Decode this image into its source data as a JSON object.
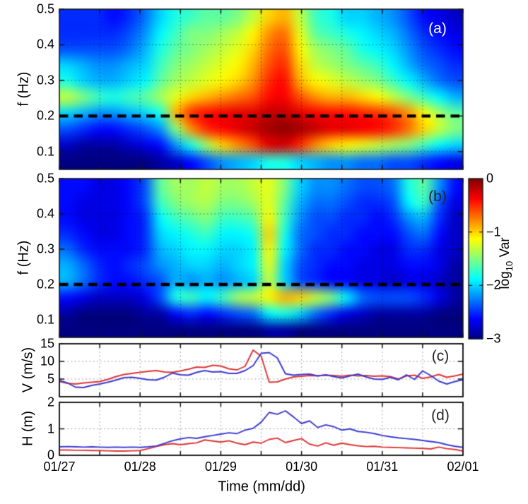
{
  "figure_labels": {
    "xlabel": "Time (mm/dd)",
    "ylabel_spectrogram": "f (Hz)",
    "ylabel_velocity": "V (m/s)",
    "ylabel_height": "H (m)",
    "x_tick_labels": [
      "01/27",
      "01/28",
      "01/29",
      "01/30",
      "01/31",
      "02/01"
    ],
    "colorbar": {
      "label_base": "log",
      "label_sub": "10",
      "label_unit": " Var",
      "tick_labels": [
        "0",
        "−1",
        "−2",
        "−3"
      ],
      "tick_values": [
        0,
        -1,
        -2,
        -3
      ]
    }
  },
  "chart_data": [
    {
      "panel": "a",
      "type": "heatmap",
      "label": "(a)",
      "label_color": "#ffffff",
      "ylabel": "f (Hz)",
      "y_range_hz": [
        0.05,
        0.5
      ],
      "y_ticks_hz": [
        0.1,
        0.2,
        0.3,
        0.4,
        0.5
      ],
      "x_range": [
        "01/27",
        "02/01"
      ],
      "x_span_days": 5,
      "x_grid_step_days": 0.5,
      "dashed_line_freq_hz": 0.2,
      "colormap": "jet",
      "value_label": "log10 Var",
      "value_range": [
        -3,
        0
      ],
      "time_days": [
        0,
        0.2,
        0.4,
        0.6,
        0.8,
        1.0,
        1.2,
        1.4,
        1.6,
        1.8,
        2.0,
        2.2,
        2.4,
        2.6,
        2.8,
        3.0,
        3.2,
        3.4,
        3.6,
        3.8,
        4.0,
        4.2,
        4.4,
        4.6,
        4.8,
        5.0
      ],
      "freq_row_centers_hz": [
        0.48,
        0.43,
        0.38,
        0.33,
        0.28,
        0.23,
        0.18,
        0.13,
        0.08,
        0.05
      ],
      "values_log10_var": [
        [
          -2.5,
          -2.5,
          -2.5,
          -2.6,
          -2.5,
          -2.3,
          -2.0,
          -1.8,
          -1.7,
          -1.6,
          -1.6,
          -1.5,
          -1.3,
          -1.0,
          -0.9,
          -1.3,
          -1.7,
          -1.8,
          -2.0,
          -2.0,
          -2.1,
          -2.2,
          -2.4,
          -2.6,
          -2.7,
          -2.8
        ],
        [
          -2.5,
          -2.5,
          -2.5,
          -2.5,
          -2.4,
          -2.2,
          -1.9,
          -1.7,
          -1.5,
          -1.5,
          -1.4,
          -1.3,
          -1.1,
          -0.8,
          -0.7,
          -1.2,
          -1.6,
          -1.7,
          -1.8,
          -1.9,
          -2.0,
          -2.1,
          -2.3,
          -2.5,
          -2.6,
          -2.7
        ],
        [
          -2.4,
          -2.4,
          -2.4,
          -2.4,
          -2.3,
          -2.1,
          -1.8,
          -1.6,
          -1.5,
          -1.4,
          -1.3,
          -1.2,
          -1.0,
          -0.7,
          -0.6,
          -1.1,
          -1.4,
          -1.5,
          -1.6,
          -1.8,
          -1.9,
          -2.0,
          -2.2,
          -2.4,
          -2.5,
          -2.6
        ],
        [
          -2.0,
          -2.1,
          -2.2,
          -2.2,
          -2.1,
          -2.0,
          -1.7,
          -1.5,
          -1.4,
          -1.3,
          -1.2,
          -1.1,
          -0.9,
          -0.6,
          -0.5,
          -1.0,
          -1.3,
          -1.4,
          -1.5,
          -1.6,
          -1.7,
          -1.9,
          -2.1,
          -2.3,
          -2.4,
          -2.5
        ],
        [
          -1.8,
          -2.0,
          -2.1,
          -2.1,
          -2.0,
          -1.9,
          -1.6,
          -1.4,
          -1.3,
          -1.2,
          -1.1,
          -1.0,
          -0.8,
          -0.5,
          -0.4,
          -0.9,
          -1.1,
          -1.2,
          -1.3,
          -1.4,
          -1.5,
          -1.7,
          -1.9,
          -2.1,
          -2.3,
          -2.4
        ],
        [
          -1.3,
          -1.5,
          -1.7,
          -1.8,
          -1.7,
          -1.6,
          -1.4,
          -1.2,
          -1.0,
          -0.9,
          -0.8,
          -0.7,
          -0.6,
          -0.4,
          -0.35,
          -0.6,
          -0.8,
          -0.9,
          -0.9,
          -1.0,
          -1.1,
          -1.3,
          -1.5,
          -1.7,
          -1.9,
          -2.1
        ],
        [
          -2.0,
          -2.1,
          -2.2,
          -2.2,
          -2.1,
          -2.0,
          -1.8,
          -0.9,
          -0.5,
          -0.4,
          -0.35,
          -0.3,
          -0.3,
          -0.2,
          -0.2,
          -0.3,
          -0.35,
          -0.4,
          -0.4,
          -0.45,
          -0.5,
          -0.6,
          -0.8,
          -1.1,
          -1.4,
          -1.6
        ],
        [
          -2.4,
          -2.5,
          -2.6,
          -2.6,
          -2.5,
          -2.4,
          -2.2,
          -1.5,
          -0.8,
          -0.5,
          -0.4,
          -0.3,
          -0.2,
          -0.1,
          -0.05,
          -0.1,
          -0.2,
          -0.3,
          -0.3,
          -0.35,
          -0.4,
          -0.5,
          -0.7,
          -1.0,
          -1.3,
          -1.5
        ],
        [
          -2.8,
          -2.9,
          -2.9,
          -2.9,
          -2.8,
          -2.7,
          -2.6,
          -2.2,
          -1.8,
          -1.4,
          -1.0,
          -0.8,
          -0.6,
          -0.3,
          -0.25,
          -0.5,
          -0.8,
          -1.0,
          -1.1,
          -1.2,
          -1.3,
          -1.4,
          -1.5,
          -1.7,
          -1.9,
          -2.0
        ],
        [
          -3,
          -3,
          -3,
          -3,
          -3,
          -3,
          -2.9,
          -2.8,
          -2.6,
          -2.4,
          -2.2,
          -2.1,
          -2.0,
          -1.8,
          -1.8,
          -2.0,
          -2.1,
          -2.2,
          -2.2,
          -2.3,
          -2.3,
          -2.4,
          -2.4,
          -2.5,
          -2.6,
          -2.7
        ]
      ]
    },
    {
      "panel": "b",
      "type": "heatmap",
      "label": "(b)",
      "label_color": "#262626",
      "ylabel": "f (Hz)",
      "y_range_hz": [
        0.05,
        0.5
      ],
      "y_ticks_hz": [
        0.1,
        0.2,
        0.3,
        0.4,
        0.5
      ],
      "x_range": [
        "01/27",
        "02/01"
      ],
      "x_span_days": 5,
      "x_grid_step_days": 0.5,
      "dashed_line_freq_hz": 0.2,
      "colormap": "jet",
      "value_label": "log10 Var",
      "value_range": [
        -3,
        0
      ],
      "time_days": [
        0,
        0.2,
        0.4,
        0.6,
        0.8,
        1.0,
        1.2,
        1.4,
        1.6,
        1.8,
        2.0,
        2.2,
        2.4,
        2.6,
        2.8,
        3.0,
        3.2,
        3.4,
        3.6,
        3.8,
        4.0,
        4.2,
        4.4,
        4.6,
        4.8,
        5.0
      ],
      "freq_row_centers_hz": [
        0.48,
        0.43,
        0.38,
        0.33,
        0.28,
        0.23,
        0.18,
        0.13,
        0.08,
        0.05
      ],
      "values_log10_var": [
        [
          -2.6,
          -2.6,
          -2.7,
          -2.7,
          -2.6,
          -2.4,
          -1.6,
          -1.4,
          -1.4,
          -1.3,
          -1.4,
          -1.4,
          -1.3,
          -1.2,
          -1.5,
          -2.0,
          -2.2,
          -2.2,
          -2.3,
          -2.4,
          -2.4,
          -2.3,
          -1.8,
          -1.6,
          -2.2,
          -2.6
        ],
        [
          -2.6,
          -2.7,
          -2.7,
          -2.7,
          -2.6,
          -2.4,
          -1.7,
          -1.5,
          -1.4,
          -1.35,
          -1.5,
          -1.5,
          -1.4,
          -1.2,
          -1.6,
          -2.1,
          -2.3,
          -2.3,
          -2.4,
          -2.5,
          -2.5,
          -2.4,
          -1.9,
          -1.7,
          -2.4,
          -2.7
        ],
        [
          -2.6,
          -2.7,
          -2.7,
          -2.7,
          -2.6,
          -2.5,
          -1.9,
          -1.7,
          -1.6,
          -1.5,
          -1.7,
          -1.7,
          -1.6,
          -1.1,
          -1.7,
          -2.2,
          -2.4,
          -2.4,
          -2.5,
          -2.5,
          -2.6,
          -2.5,
          -2.2,
          -2.1,
          -2.5,
          -2.8
        ],
        [
          -2.5,
          -2.6,
          -2.7,
          -2.7,
          -2.6,
          -2.5,
          -2.0,
          -1.9,
          -1.8,
          -1.7,
          -1.9,
          -1.9,
          -1.8,
          -1.0,
          -1.8,
          -2.3,
          -2.4,
          -2.5,
          -2.5,
          -2.6,
          -2.6,
          -2.6,
          -2.4,
          -2.3,
          -2.6,
          -2.8
        ],
        [
          -2.3,
          -2.5,
          -2.6,
          -2.6,
          -2.6,
          -2.5,
          -2.1,
          -2.0,
          -1.9,
          -1.9,
          -2.0,
          -2.0,
          -1.9,
          -1.1,
          -1.9,
          -2.3,
          -2.5,
          -2.5,
          -2.6,
          -2.6,
          -2.7,
          -2.7,
          -2.5,
          -2.5,
          -2.7,
          -2.8
        ],
        [
          -2.1,
          -2.3,
          -2.5,
          -2.6,
          -2.5,
          -2.4,
          -2.2,
          -2.1,
          -2.0,
          -2.0,
          -2.1,
          -2.0,
          -1.9,
          -1.2,
          -2.0,
          -2.4,
          -2.5,
          -2.6,
          -2.6,
          -2.7,
          -2.7,
          -2.7,
          -2.6,
          -2.6,
          -2.7,
          -2.9
        ],
        [
          -2.1,
          -2.3,
          -2.5,
          -2.6,
          -2.6,
          -2.5,
          -2.4,
          -2.1,
          -2.2,
          -2.1,
          -2.2,
          -2.1,
          -2.0,
          -1.3,
          -2.0,
          -2.4,
          -2.5,
          -2.6,
          -2.6,
          -2.7,
          -2.7,
          -2.8,
          -2.7,
          -2.7,
          -2.8,
          -2.9
        ],
        [
          -2.6,
          -2.7,
          -2.8,
          -2.8,
          -2.8,
          -2.7,
          -2.4,
          -1.8,
          -1.7,
          -1.9,
          -1.7,
          -1.4,
          -1.3,
          -1.1,
          -0.9,
          -1.0,
          -1.3,
          -1.5,
          -1.9,
          -2.3,
          -2.4,
          -2.4,
          -2.4,
          -2.5,
          -2.7,
          -2.9
        ],
        [
          -2.9,
          -3.0,
          -3.0,
          -3.0,
          -3.0,
          -2.9,
          -2.9,
          -2.6,
          -2.5,
          -2.6,
          -2.5,
          -2.4,
          -2.3,
          -1.9,
          -1.8,
          -2.0,
          -2.3,
          -2.5,
          -2.7,
          -2.8,
          -2.9,
          -2.9,
          -2.9,
          -2.9,
          -3.0,
          -3.0
        ],
        [
          -3,
          -3,
          -3,
          -3,
          -3,
          -3,
          -3,
          -3,
          -3,
          -3,
          -3,
          -3,
          -3,
          -2.9,
          -2.9,
          -3,
          -3,
          -3,
          -3,
          -3,
          -3,
          -3,
          -3,
          -3,
          -3,
          -3
        ]
      ]
    },
    {
      "panel": "c",
      "type": "line",
      "label": "(c)",
      "label_color": "#262626",
      "ylabel": "V (m/s)",
      "ylim": [
        0,
        15
      ],
      "y_ticks": [
        5,
        10,
        15
      ],
      "x_range": [
        "01/27",
        "02/01"
      ],
      "x_span_days": 5,
      "x_grid_step_days": 0.5,
      "dt_days": 0.1,
      "series": [
        {
          "name": "red",
          "color": "#e03434",
          "values": [
            4.3,
            3.8,
            3.6,
            3.9,
            4.1,
            4.3,
            4.9,
            5.7,
            6.3,
            6.6,
            6.9,
            7.2,
            7.4,
            7.0,
            6.9,
            7.3,
            7.8,
            8.4,
            8.3,
            8.9,
            8.7,
            7.9,
            7.6,
            8.6,
            13.2,
            11.5,
            4.1,
            4.2,
            5.0,
            5.6,
            5.8,
            6.0,
            5.9,
            6.1,
            6.0,
            5.8,
            6.1,
            5.9,
            6.0,
            5.8,
            5.9,
            5.7,
            5.0,
            5.9,
            6.1,
            5.2,
            5.6,
            6.3,
            5.5,
            5.9,
            6.4
          ]
        },
        {
          "name": "blue",
          "color": "#3a3ad2",
          "values": [
            4.6,
            3.9,
            2.7,
            2.6,
            3.2,
            3.6,
            4.1,
            4.7,
            5.4,
            5.5,
            5.2,
            4.8,
            4.7,
            5.5,
            6.7,
            6.2,
            6.1,
            6.9,
            7.4,
            7.0,
            7.1,
            6.6,
            6.6,
            7.4,
            8.8,
            12.3,
            12.5,
            11.0,
            6.5,
            6.1,
            6.3,
            6.4,
            5.9,
            6.2,
            5.7,
            5.3,
            5.9,
            6.4,
            5.6,
            5.0,
            4.9,
            5.5,
            4.8,
            6.2,
            4.9,
            7.3,
            6.0,
            4.4,
            3.6,
            4.3,
            4.8
          ]
        }
      ]
    },
    {
      "panel": "d",
      "type": "line",
      "label": "(d)",
      "label_color": "#262626",
      "ylabel": "H (m)",
      "ylim": [
        0,
        2
      ],
      "y_ticks": [
        0,
        1,
        2
      ],
      "x_range": [
        "01/27",
        "02/01"
      ],
      "x_span_days": 5,
      "x_grid_step_days": 0.5,
      "dt_days": 0.1,
      "series": [
        {
          "name": "red",
          "color": "#e03434",
          "values": [
            0.2,
            0.2,
            0.19,
            0.19,
            0.18,
            0.18,
            0.17,
            0.16,
            0.16,
            0.17,
            0.18,
            0.25,
            0.33,
            0.4,
            0.44,
            0.4,
            0.44,
            0.47,
            0.58,
            0.54,
            0.5,
            0.55,
            0.46,
            0.4,
            0.5,
            0.46,
            0.6,
            0.65,
            0.48,
            0.56,
            0.63,
            0.42,
            0.35,
            0.47,
            0.38,
            0.46,
            0.4,
            0.36,
            0.33,
            0.34,
            0.31,
            0.3,
            0.29,
            0.28,
            0.27,
            0.26,
            0.24,
            0.31,
            0.25,
            0.22,
            0.16
          ]
        },
        {
          "name": "blue",
          "color": "#3a3ad2",
          "values": [
            0.32,
            0.33,
            0.32,
            0.31,
            0.32,
            0.31,
            0.3,
            0.31,
            0.3,
            0.31,
            0.3,
            0.32,
            0.35,
            0.45,
            0.55,
            0.62,
            0.67,
            0.64,
            0.7,
            0.75,
            0.8,
            0.85,
            0.82,
            0.95,
            1.02,
            1.25,
            1.62,
            1.55,
            1.68,
            1.45,
            1.2,
            1.3,
            1.05,
            1.15,
            1.08,
            0.95,
            1.0,
            0.9,
            0.87,
            0.82,
            0.75,
            0.7,
            0.66,
            0.63,
            0.6,
            0.56,
            0.52,
            0.48,
            0.4,
            0.34,
            0.3
          ]
        }
      ]
    }
  ]
}
